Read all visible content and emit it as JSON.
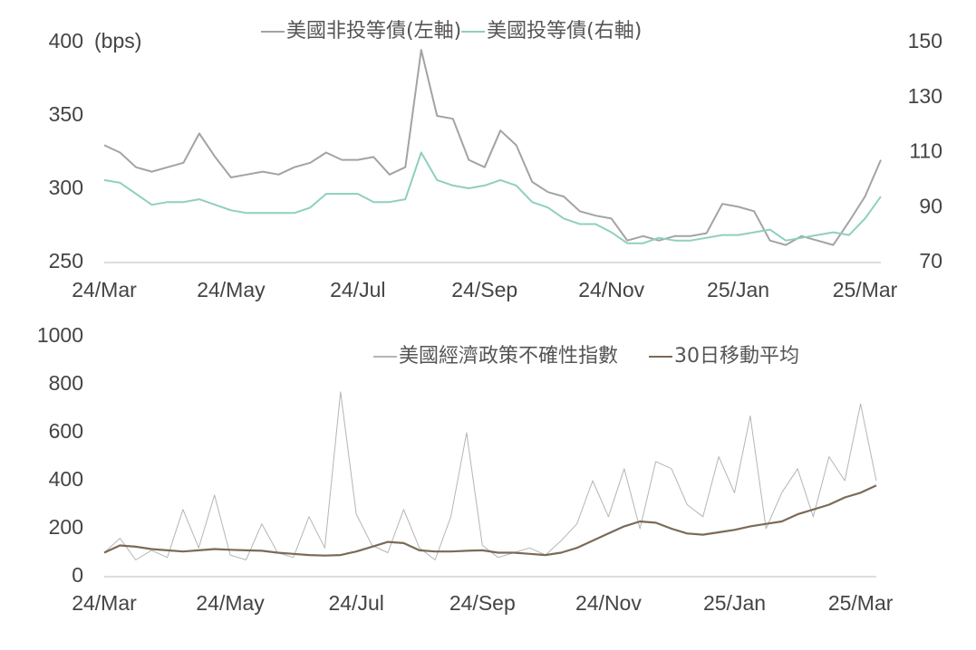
{
  "chart_data": [
    {
      "type": "line",
      "y_label": "(bps)",
      "legend": "top",
      "categories": [
        "24/Mar",
        null,
        null,
        null,
        null,
        null,
        null,
        null,
        "24/May",
        null,
        null,
        null,
        null,
        null,
        null,
        null,
        "24/Jul",
        null,
        null,
        null,
        null,
        null,
        null,
        null,
        "24/Sep",
        null,
        null,
        null,
        null,
        null,
        null,
        null,
        "24/Nov",
        null,
        null,
        null,
        null,
        null,
        null,
        null,
        "25/Jan",
        null,
        null,
        null,
        null,
        null,
        null,
        null,
        "25/Mar",
        null
      ],
      "ylim": [
        250,
        400
      ],
      "yticks": [
        250,
        300,
        350,
        400
      ],
      "y2lim": [
        70,
        150
      ],
      "y2ticks": [
        70,
        90,
        110,
        130,
        150
      ],
      "series": [
        {
          "name": "美國非投等債(左軸)",
          "color": "#a3a3a3",
          "values": [
            330,
            325,
            315,
            312,
            315,
            318,
            338,
            322,
            308,
            310,
            312,
            310,
            315,
            318,
            325,
            320,
            320,
            322,
            310,
            315,
            395,
            350,
            348,
            320,
            315,
            340,
            330,
            305,
            298,
            295,
            285,
            282,
            280,
            265,
            268,
            265,
            268,
            268,
            270,
            290,
            288,
            285,
            265,
            262,
            268,
            265,
            262,
            278,
            295,
            320
          ]
        },
        {
          "name": "美國投等債(右軸)",
          "color": "#8fcfc0",
          "axis": "y2",
          "values": [
            100,
            99,
            95,
            91,
            92,
            92,
            93,
            91,
            89,
            88,
            88,
            88,
            88,
            90,
            95,
            95,
            95,
            92,
            92,
            93,
            110,
            100,
            98,
            97,
            98,
            100,
            98,
            92,
            90,
            86,
            84,
            84,
            81,
            77,
            77,
            79,
            78,
            78,
            79,
            80,
            80,
            81,
            82,
            78,
            79,
            80,
            81,
            80,
            86,
            94
          ]
        }
      ]
    },
    {
      "type": "line",
      "legend": "top-right",
      "categories": [
        "24/Mar",
        null,
        null,
        null,
        null,
        null,
        null,
        null,
        "24/May",
        null,
        null,
        null,
        null,
        null,
        null,
        null,
        "24/Jul",
        null,
        null,
        null,
        null,
        null,
        null,
        null,
        "24/Sep",
        null,
        null,
        null,
        null,
        null,
        null,
        null,
        "24/Nov",
        null,
        null,
        null,
        null,
        null,
        null,
        null,
        "25/Jan",
        null,
        null,
        null,
        null,
        null,
        null,
        null,
        "25/Mar",
        null
      ],
      "ylim": [
        0,
        1000
      ],
      "yticks": [
        0,
        200,
        400,
        600,
        800,
        1000
      ],
      "series": [
        {
          "name": "美國經濟政策不確性指數",
          "color": "#b5b5b5",
          "values": [
            100,
            160,
            70,
            110,
            80,
            280,
            120,
            340,
            90,
            70,
            220,
            100,
            80,
            250,
            120,
            770,
            260,
            130,
            100,
            280,
            120,
            70,
            250,
            600,
            130,
            80,
            100,
            120,
            90,
            150,
            220,
            400,
            250,
            450,
            200,
            480,
            450,
            300,
            250,
            500,
            350,
            670,
            200,
            350,
            450,
            250,
            500,
            400,
            720,
            400
          ]
        },
        {
          "name": "30日移動平均",
          "color": "#7a6a58",
          "values": [
            100,
            130,
            125,
            115,
            110,
            105,
            110,
            115,
            112,
            110,
            108,
            100,
            95,
            90,
            88,
            90,
            105,
            125,
            145,
            140,
            110,
            105,
            105,
            108,
            110,
            100,
            100,
            95,
            90,
            100,
            120,
            150,
            180,
            210,
            230,
            225,
            200,
            180,
            175,
            185,
            195,
            210,
            220,
            230,
            260,
            280,
            300,
            330,
            350,
            380
          ]
        }
      ]
    }
  ]
}
